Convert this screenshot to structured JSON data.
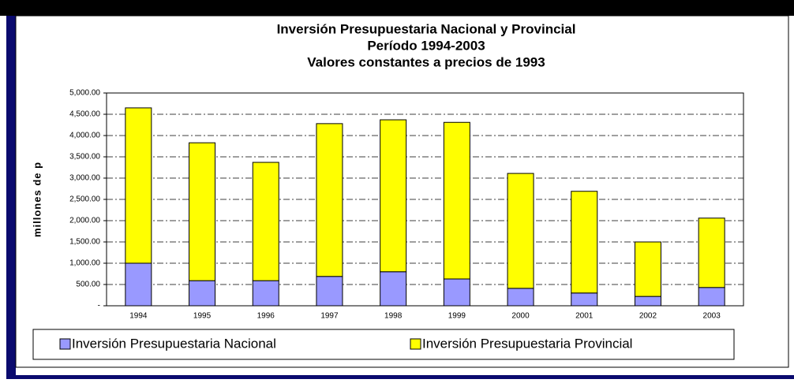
{
  "chart_data": {
    "type": "stacked_bar",
    "title": [
      "Inversión Presupuestaria Nacional y Provincial",
      "Período 1994-2003",
      "Valores constantes a precios de 1993"
    ],
    "y_label": "millones de p",
    "categories": [
      "1994",
      "1995",
      "1996",
      "1997",
      "1998",
      "1999",
      "2000",
      "2001",
      "2002",
      "2003"
    ],
    "series": [
      {
        "name": "Inversión Presupuestaria Nacional",
        "color": "#9999ff",
        "values": [
          1000,
          590,
          590,
          690,
          800,
          630,
          410,
          300,
          220,
          430
        ]
      },
      {
        "name": "Inversión Presupuestaria Provincial",
        "color": "#ffff00",
        "values": [
          3650,
          3240,
          2780,
          3590,
          3570,
          3680,
          2700,
          2390,
          1280,
          1630
        ]
      }
    ],
    "ylim": [
      0,
      5000
    ],
    "yticks": [
      {
        "value": 0,
        "label": "-"
      },
      {
        "value": 500,
        "label": "500.00"
      },
      {
        "value": 1000,
        "label": "1,000.00"
      },
      {
        "value": 1500,
        "label": "1,500.00"
      },
      {
        "value": 2000,
        "label": "2,000.00"
      },
      {
        "value": 2500,
        "label": "2,500.00"
      },
      {
        "value": 3000,
        "label": "3,000.00"
      },
      {
        "value": 3500,
        "label": "3,500.00"
      },
      {
        "value": 4000,
        "label": "4,000.00"
      },
      {
        "value": 4500,
        "label": "4,500.00"
      },
      {
        "value": 5000,
        "label": "5,000.00"
      }
    ],
    "grid": true
  }
}
